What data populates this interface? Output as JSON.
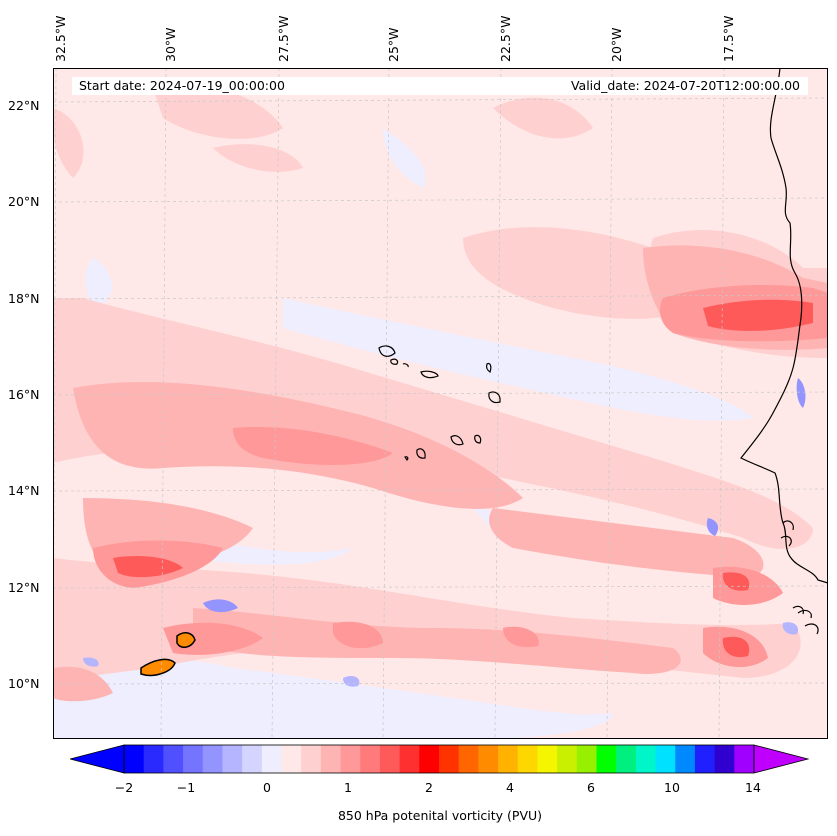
{
  "map": {
    "start_date": "Start date: 2024-07-19_00:00:00",
    "valid_date": "Valid_date: 2024-07-20T12:00:00.00",
    "lon_labels": [
      "32.5°W",
      "30°W",
      "27.5°W",
      "25°W",
      "22.5°W",
      "20°W",
      "17.5°W"
    ],
    "lat_labels": [
      "22°N",
      "20°N",
      "18°N",
      "16°N",
      "14°N",
      "12°N",
      "10°N"
    ],
    "field": "850 hPa potential vorticity",
    "region": "Cape Verde islands and West African coast"
  },
  "colorbar": {
    "label": "850 hPa potenital vorticity (PVU)",
    "ticks": [
      "−2",
      "−1",
      "0",
      "1",
      "2",
      "4",
      "6",
      "10",
      "14"
    ],
    "colors": [
      "#0000ff",
      "#2a2aff",
      "#5050ff",
      "#7474ff",
      "#9494ff",
      "#b4b4ff",
      "#d4d4ff",
      "#eeeeff",
      "#ffe8e8",
      "#ffd0d0",
      "#ffb4b4",
      "#ff9898",
      "#ff7a7a",
      "#ff5a5a",
      "#ff3030",
      "#ff0000",
      "#ff3300",
      "#ff6600",
      "#ff8c00",
      "#ffb300",
      "#ffd700",
      "#f5f500",
      "#c8f000",
      "#96f000",
      "#00ff00",
      "#00f080",
      "#00f5c8",
      "#00e0ff",
      "#0088ff",
      "#2020ff",
      "#3000d0",
      "#a000ff"
    ],
    "extend_min_color": "#0000ff",
    "extend_max_color": "#c000ff"
  }
}
